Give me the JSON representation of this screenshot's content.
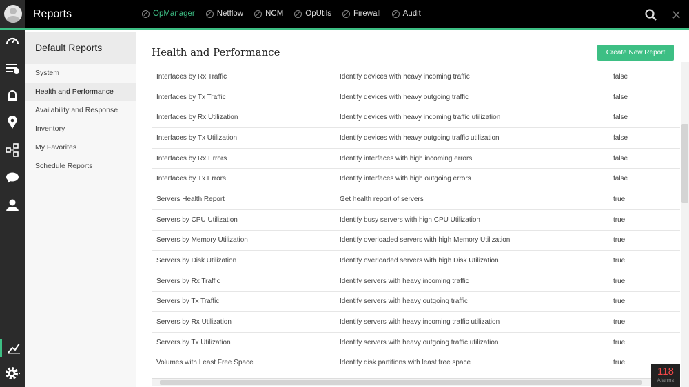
{
  "header": {
    "title": "Reports",
    "products": [
      {
        "label": "OpManager",
        "active": true
      },
      {
        "label": "Netflow"
      },
      {
        "label": "NCM"
      },
      {
        "label": "OpUtils"
      },
      {
        "label": "Firewall"
      },
      {
        "label": "Audit"
      }
    ]
  },
  "sidebar": {
    "title": "Default Reports",
    "items": [
      {
        "label": "System"
      },
      {
        "label": "Health and Performance",
        "selected": true
      },
      {
        "label": "Availability and Response"
      },
      {
        "label": "Inventory"
      },
      {
        "label": "My Favorites"
      },
      {
        "label": "Schedule Reports"
      }
    ]
  },
  "main": {
    "title": "Health and Performance",
    "create_label": "Create New Report",
    "rows": [
      [
        "Interfaces by Rx Traffic",
        "Identify devices with heavy incoming traffic",
        "false"
      ],
      [
        "Interfaces by Tx Traffic",
        "Identify devices with heavy outgoing traffic",
        "false"
      ],
      [
        "Interfaces by Rx Utilization",
        "Identify devices with heavy incoming traffic utilization",
        "false"
      ],
      [
        "Interfaces by Tx Utilization",
        "Identify devices with heavy outgoing traffic utilization",
        "false"
      ],
      [
        "Interfaces by Rx Errors",
        "Identify interfaces with high incoming errors",
        "false"
      ],
      [
        "Interfaces by Tx Errors",
        "Identify interfaces with high outgoing errors",
        "false"
      ],
      [
        "Servers Health Report",
        "Get health report of servers",
        "true"
      ],
      [
        "Servers by CPU Utilization",
        "Identify busy servers with high CPU Utilization",
        "true"
      ],
      [
        "Servers by Memory Utilization",
        "Identify overloaded servers with high Memory Utilization",
        "true"
      ],
      [
        "Servers by Disk Utilization",
        "Identify overloaded servers with high Disk Utilization",
        "true"
      ],
      [
        "Servers by Rx Traffic",
        "Identify servers with heavy incoming traffic",
        "true"
      ],
      [
        "Servers by Tx Traffic",
        "Identify servers with heavy outgoing traffic",
        "true"
      ],
      [
        "Servers by Rx Utilization",
        "Identify servers with heavy incoming traffic utilization",
        "true"
      ],
      [
        "Servers by Tx Utilization",
        "Identify servers with heavy outgoing traffic utilization",
        "true"
      ],
      [
        "Volumes with Least Free Space",
        "Identify disk partitions with least free space",
        "true"
      ]
    ]
  },
  "alarms": {
    "count": "118",
    "label": "Alarms"
  },
  "colors": {
    "accent": "#3dbf84",
    "alarm": "#f04848"
  }
}
